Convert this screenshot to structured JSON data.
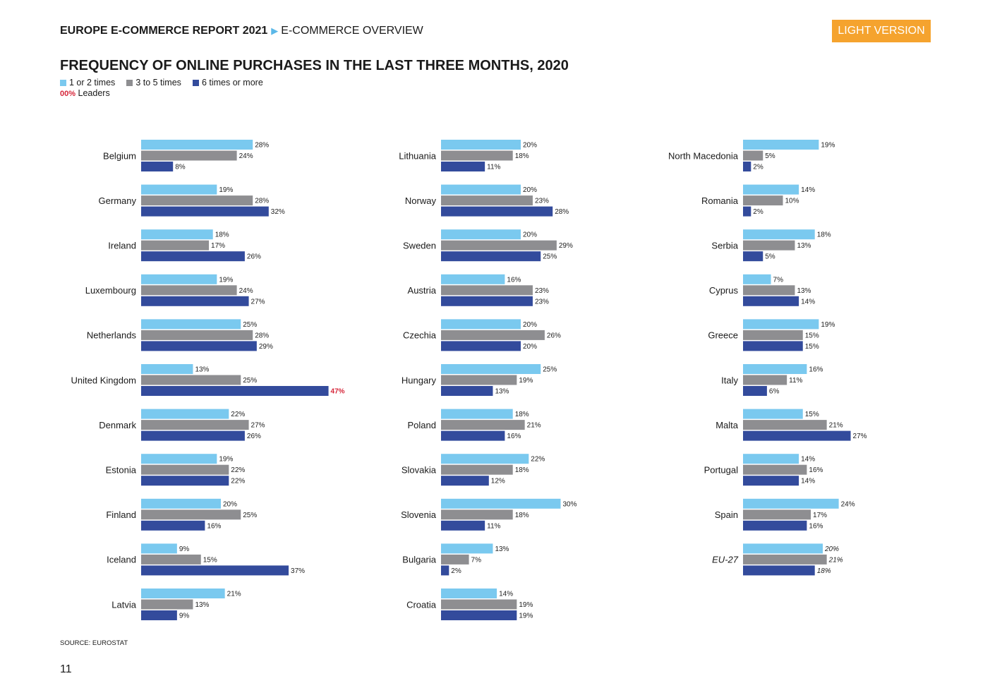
{
  "header": {
    "report": "EUROPE E-COMMERCE REPORT 2021",
    "section": "E-COMMERCE OVERVIEW",
    "badge": "LIGHT VERSION"
  },
  "legend": {
    "items": [
      {
        "label": "1 or 2 times",
        "color": "#7ac9ef"
      },
      {
        "label": "3 to 5 times",
        "color": "#8e8e91"
      },
      {
        "label": "6 times or more",
        "color": "#334b9c"
      }
    ],
    "leaders_code": "00%",
    "leaders_label": "Leaders",
    "leader_color": "#d6263a"
  },
  "footer": {
    "source": "SOURCE: EUROSTAT",
    "page": "11"
  },
  "chart_data": {
    "type": "bar",
    "orientation": "horizontal",
    "title": "FREQUENCY OF ONLINE PURCHASES IN THE LAST THREE MONTHS, 2020",
    "unit": "%",
    "series_names": [
      "1 or 2 times",
      "3 to 5 times",
      "6 times or more"
    ],
    "panels": [
      {
        "countries": [
          {
            "name": "Belgium",
            "values": [
              28,
              24,
              8
            ]
          },
          {
            "name": "Germany",
            "values": [
              19,
              28,
              32
            ]
          },
          {
            "name": "Ireland",
            "values": [
              18,
              17,
              26
            ]
          },
          {
            "name": "Luxembourg",
            "values": [
              19,
              24,
              27
            ]
          },
          {
            "name": "Netherlands",
            "values": [
              25,
              28,
              29
            ]
          },
          {
            "name": "United Kingdom",
            "values": [
              13,
              25,
              47
            ],
            "leader": 2
          },
          {
            "name": "Denmark",
            "values": [
              22,
              27,
              26
            ]
          },
          {
            "name": "Estonia",
            "values": [
              19,
              22,
              22
            ]
          },
          {
            "name": "Finland",
            "values": [
              20,
              25,
              16
            ]
          },
          {
            "name": "Iceland",
            "values": [
              9,
              15,
              37
            ]
          },
          {
            "name": "Latvia",
            "values": [
              21,
              13,
              9
            ]
          }
        ]
      },
      {
        "countries": [
          {
            "name": "Lithuania",
            "values": [
              20,
              18,
              11
            ]
          },
          {
            "name": "Norway",
            "values": [
              20,
              23,
              28
            ]
          },
          {
            "name": "Sweden",
            "values": [
              20,
              29,
              25
            ]
          },
          {
            "name": "Austria",
            "values": [
              16,
              23,
              23
            ]
          },
          {
            "name": "Czechia",
            "values": [
              20,
              26,
              20
            ]
          },
          {
            "name": "Hungary",
            "values": [
              25,
              19,
              13
            ]
          },
          {
            "name": "Poland",
            "values": [
              18,
              21,
              16
            ]
          },
          {
            "name": "Slovakia",
            "values": [
              22,
              18,
              12
            ]
          },
          {
            "name": "Slovenia",
            "values": [
              30,
              18,
              11
            ]
          },
          {
            "name": "Bulgaria",
            "values": [
              13,
              7,
              2
            ]
          },
          {
            "name": "Croatia",
            "values": [
              14,
              19,
              19
            ]
          }
        ]
      },
      {
        "countries": [
          {
            "name": "North Macedonia",
            "values": [
              19,
              5,
              2
            ]
          },
          {
            "name": "Romania",
            "values": [
              14,
              10,
              2
            ]
          },
          {
            "name": "Serbia",
            "values": [
              18,
              13,
              5
            ]
          },
          {
            "name": "Cyprus",
            "values": [
              7,
              13,
              14
            ]
          },
          {
            "name": "Greece",
            "values": [
              19,
              15,
              15
            ]
          },
          {
            "name": "Italy",
            "values": [
              16,
              11,
              6
            ]
          },
          {
            "name": "Malta",
            "values": [
              15,
              21,
              27
            ]
          },
          {
            "name": "Portugal",
            "values": [
              14,
              16,
              14
            ]
          },
          {
            "name": "Spain",
            "values": [
              24,
              17,
              16
            ]
          },
          {
            "name": "EU-27",
            "values": [
              20,
              21,
              18
            ],
            "italic": true
          }
        ]
      }
    ]
  }
}
